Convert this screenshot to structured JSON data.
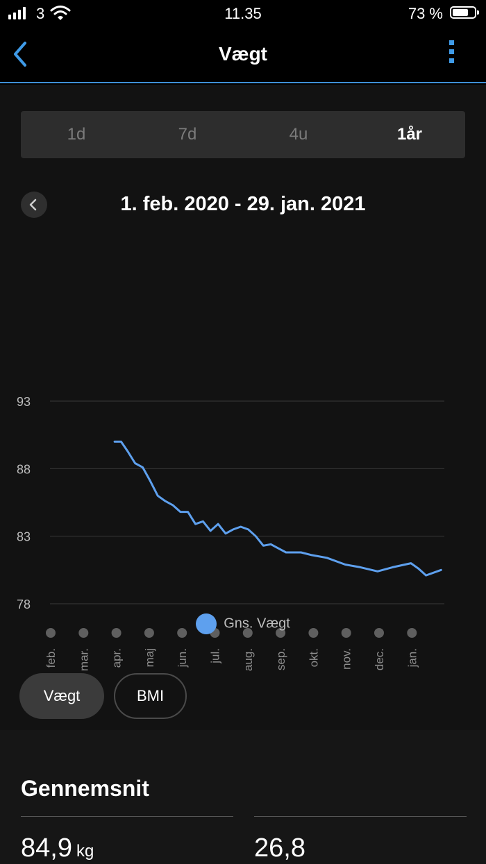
{
  "status": {
    "carrier": "3",
    "time": "11.35",
    "battery_pct": "73 %",
    "battery_level": 0.73
  },
  "nav": {
    "title": "Vægt",
    "back_icon": "chevron-left-icon",
    "more_icon": "kebab-menu-icon"
  },
  "periods": [
    {
      "label": "1d",
      "active": false
    },
    {
      "label": "7d",
      "active": false
    },
    {
      "label": "4u",
      "active": false
    },
    {
      "label": "1år",
      "active": true
    }
  ],
  "range": {
    "label": "1. feb. 2020 - 29. jan. 2021"
  },
  "chart_data": {
    "type": "line",
    "title": "",
    "y_ticks": [
      93,
      88,
      83,
      78
    ],
    "ylim": [
      78,
      93
    ],
    "months": [
      "feb.",
      "mar.",
      "apr.",
      "maj",
      "jun.",
      "jul.",
      "aug.",
      "sep.",
      "okt.",
      "nov.",
      "dec.",
      "jan."
    ],
    "series": [
      {
        "name": "Gns. Vægt",
        "color": "#5ea0ee",
        "x": [
          "2020-04-01",
          "2020-04-07",
          "2020-04-13",
          "2020-04-20",
          "2020-04-27",
          "2020-05-04",
          "2020-05-11",
          "2020-05-18",
          "2020-05-25",
          "2020-06-01",
          "2020-06-08",
          "2020-06-15",
          "2020-06-22",
          "2020-06-29",
          "2020-07-06",
          "2020-07-13",
          "2020-07-20",
          "2020-07-27",
          "2020-08-03",
          "2020-08-10",
          "2020-08-17",
          "2020-08-24",
          "2020-08-31",
          "2020-09-07",
          "2020-09-14",
          "2020-09-21",
          "2020-10-01",
          "2020-10-15",
          "2020-11-01",
          "2020-11-15",
          "2020-12-01",
          "2020-12-15",
          "2021-01-01",
          "2021-01-08",
          "2021-01-15",
          "2021-01-29"
        ],
        "values": [
          90.0,
          90.0,
          89.3,
          88.4,
          88.1,
          87.1,
          86.0,
          85.6,
          85.3,
          84.8,
          84.8,
          83.9,
          84.1,
          83.4,
          83.9,
          83.2,
          83.5,
          83.7,
          83.5,
          83.0,
          82.3,
          82.4,
          82.1,
          81.8,
          81.8,
          81.8,
          81.6,
          81.4,
          80.9,
          80.7,
          80.4,
          80.7,
          81.0,
          80.6,
          80.1,
          80.5
        ]
      }
    ],
    "grid": true,
    "legend_position": "bottom-center"
  },
  "metric_switch": {
    "active": "Vægt",
    "inactive": "BMI"
  },
  "summary": {
    "heading": "Gennemsnit",
    "weight_value": "84,9",
    "weight_unit": "kg",
    "bmi_value": "26,8"
  }
}
